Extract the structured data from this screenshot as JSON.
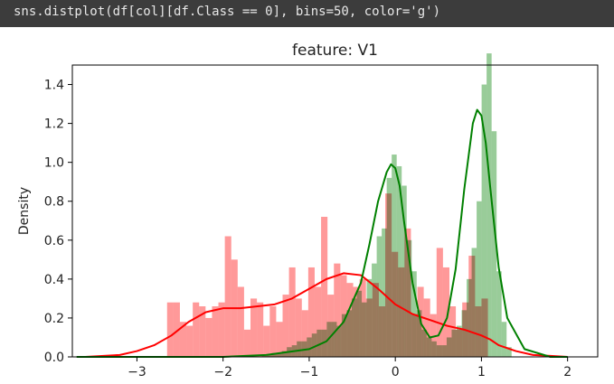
{
  "code": {
    "text": "sns.distplot(df[col][df.Class == 0], bins=50, color='g')"
  },
  "colors": {
    "code_bg": "#3c3c3c",
    "red": "#ff0000",
    "green": "#008000",
    "red_bar": "#ff9a9a",
    "green_bar": "#99cc99",
    "overlap_bar": "#8f7f41"
  },
  "chart_data": {
    "type": "bar",
    "title": "feature: V1",
    "xlabel": "",
    "ylabel": "Density",
    "xlim": [
      -3.75,
      2.35
    ],
    "ylim": [
      0,
      1.5
    ],
    "x_ticks": [
      -3,
      -2,
      -1,
      0,
      1,
      2
    ],
    "x_tick_labels": [
      "−3",
      "−2",
      "−1",
      "0",
      "1",
      "2"
    ],
    "y_ticks": [
      0.0,
      0.2,
      0.4,
      0.6,
      0.8,
      1.0,
      1.2,
      1.4
    ],
    "y_tick_labels": [
      "0.0",
      "0.2",
      "0.4",
      "0.6",
      "0.8",
      "1.0",
      "1.2",
      "1.4"
    ],
    "series": [
      {
        "key": "red",
        "color": "#ff0000",
        "hist": {
          "bin_start": -2.65,
          "bin_width": 0.0745,
          "values": [
            0.28,
            0.28,
            0.18,
            0.16,
            0.28,
            0.26,
            0.2,
            0.26,
            0.28,
            0.62,
            0.5,
            0.36,
            0.14,
            0.3,
            0.28,
            0.16,
            0.26,
            0.18,
            0.32,
            0.46,
            0.3,
            0.24,
            0.46,
            0.36,
            0.72,
            0.32,
            0.48,
            0.42,
            0.38,
            0.36,
            0.4,
            0.3,
            0.38,
            0.26,
            0.84,
            0.54,
            0.46,
            0.66,
            0.22,
            0.36,
            0.3,
            0.22,
            0.56,
            0.46,
            0.26,
            0.14,
            0.28,
            0.52,
            0.26,
            0.3
          ]
        },
        "kde": {
          "x": [
            -3.6,
            -3.2,
            -3.0,
            -2.8,
            -2.6,
            -2.4,
            -2.2,
            -2.0,
            -1.8,
            -1.6,
            -1.4,
            -1.2,
            -1.0,
            -0.8,
            -0.6,
            -0.4,
            -0.2,
            0.0,
            0.2,
            0.4,
            0.6,
            0.8,
            1.0,
            1.1,
            1.2,
            1.4,
            1.6,
            1.8,
            2.0
          ],
          "y": [
            0.0,
            0.01,
            0.03,
            0.06,
            0.11,
            0.18,
            0.23,
            0.25,
            0.25,
            0.26,
            0.27,
            0.3,
            0.35,
            0.4,
            0.43,
            0.42,
            0.35,
            0.27,
            0.22,
            0.19,
            0.16,
            0.14,
            0.11,
            0.09,
            0.06,
            0.03,
            0.01,
            0.005,
            0.0
          ]
        }
      },
      {
        "key": "green",
        "color": "#008000",
        "hist": {
          "bin_start": -1.55,
          "bin_width": 0.058,
          "values": [
            0.005,
            0.01,
            0.02,
            0.02,
            0.03,
            0.05,
            0.06,
            0.08,
            0.08,
            0.1,
            0.12,
            0.14,
            0.14,
            0.18,
            0.18,
            0.16,
            0.22,
            0.24,
            0.3,
            0.34,
            0.28,
            0.4,
            0.48,
            0.62,
            0.66,
            0.92,
            1.04,
            0.98,
            0.88,
            0.6,
            0.44,
            0.24,
            0.14,
            0.1,
            0.08,
            0.06,
            0.06,
            0.1,
            0.14,
            0.16,
            0.24,
            0.4,
            0.56,
            0.8,
            1.4,
            1.56,
            1.16,
            0.44,
            0.18,
            0.05
          ]
        },
        "kde": {
          "x": [
            -3.7,
            -2.5,
            -2.0,
            -1.5,
            -1.0,
            -0.8,
            -0.6,
            -0.4,
            -0.3,
            -0.2,
            -0.1,
            -0.05,
            0.0,
            0.05,
            0.1,
            0.2,
            0.3,
            0.4,
            0.5,
            0.6,
            0.7,
            0.8,
            0.9,
            0.95,
            1.0,
            1.05,
            1.1,
            1.2,
            1.3,
            1.5,
            1.8,
            2.0
          ],
          "y": [
            0.0,
            0.0,
            0.0,
            0.01,
            0.04,
            0.08,
            0.18,
            0.38,
            0.58,
            0.8,
            0.95,
            0.99,
            0.97,
            0.88,
            0.7,
            0.38,
            0.17,
            0.1,
            0.11,
            0.2,
            0.45,
            0.86,
            1.2,
            1.27,
            1.24,
            1.1,
            0.88,
            0.46,
            0.2,
            0.04,
            0.0,
            0.0
          ]
        }
      }
    ]
  }
}
